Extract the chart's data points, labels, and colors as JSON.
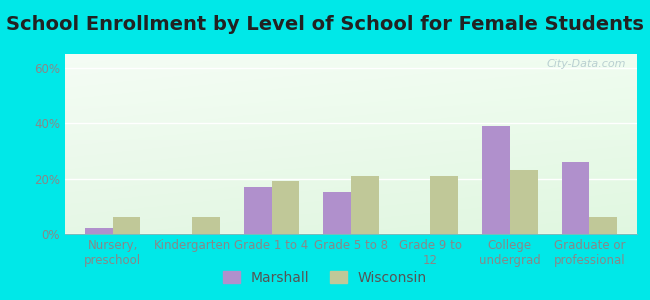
{
  "title": "School Enrollment by Level of School for Female Students",
  "categories": [
    "Nursery,\npreschool",
    "Kindergarten",
    "Grade 1 to 4",
    "Grade 5 to 8",
    "Grade 9 to\n12",
    "College\nundergrad",
    "Graduate or\nprofessional"
  ],
  "marshall": [
    2,
    0,
    17,
    15,
    0,
    39,
    26
  ],
  "wisconsin": [
    6,
    6,
    19,
    21,
    21,
    23,
    6
  ],
  "marshall_color": "#b090cc",
  "wisconsin_color": "#c0c898",
  "bar_width": 0.35,
  "ylim": [
    0,
    65
  ],
  "yticks": [
    0,
    20,
    40,
    60
  ],
  "ytick_labels": [
    "0%",
    "20%",
    "40%",
    "60%"
  ],
  "background_color": "#00e8e8",
  "legend_labels": [
    "Marshall",
    "Wisconsin"
  ],
  "title_fontsize": 14,
  "axis_fontsize": 8.5,
  "legend_fontsize": 10,
  "tick_color": "#888888",
  "title_color": "#222222",
  "watermark": "City-Data.com",
  "watermark_color": "#b0c8cc"
}
